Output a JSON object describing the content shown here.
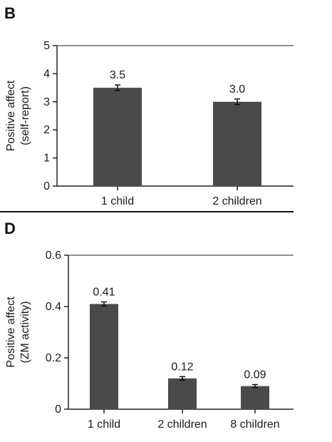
{
  "colors": {
    "bar": "#4a4a4a",
    "axis": "#222222",
    "divider": "#111111"
  },
  "panels": [
    {
      "label": "B"
    },
    {
      "label": "D"
    }
  ],
  "chart_data": [
    {
      "type": "bar",
      "panel": "B",
      "categories": [
        "1 child",
        "2 children"
      ],
      "values": [
        3.5,
        3.0
      ],
      "data_labels": [
        "3.5",
        "3.0"
      ],
      "error": [
        0.1,
        0.1
      ],
      "ylabel_line1": "Positive affect",
      "ylabel_line2": "(self-report)",
      "ylim": [
        0,
        5
      ],
      "yticks": [
        0,
        1,
        2,
        3,
        4,
        5
      ],
      "ytick_labels": [
        "0",
        "1",
        "2",
        "3",
        "4",
        "5"
      ],
      "grid": false
    },
    {
      "type": "bar",
      "panel": "D",
      "categories": [
        "1 child",
        "2 children",
        "8 children"
      ],
      "values": [
        0.41,
        0.12,
        0.09
      ],
      "data_labels": [
        "0.41",
        "0.12",
        "0.09"
      ],
      "error": [
        0.008,
        0.007,
        0.006
      ],
      "ylabel_line1": "Positive affect",
      "ylabel_line2": "(ZM activity)",
      "ylim": [
        0,
        0.6
      ],
      "yticks": [
        0,
        0.2,
        0.4,
        0.6
      ],
      "ytick_labels": [
        "0",
        "0.2",
        "0.4",
        "0.6"
      ],
      "grid": false
    }
  ]
}
